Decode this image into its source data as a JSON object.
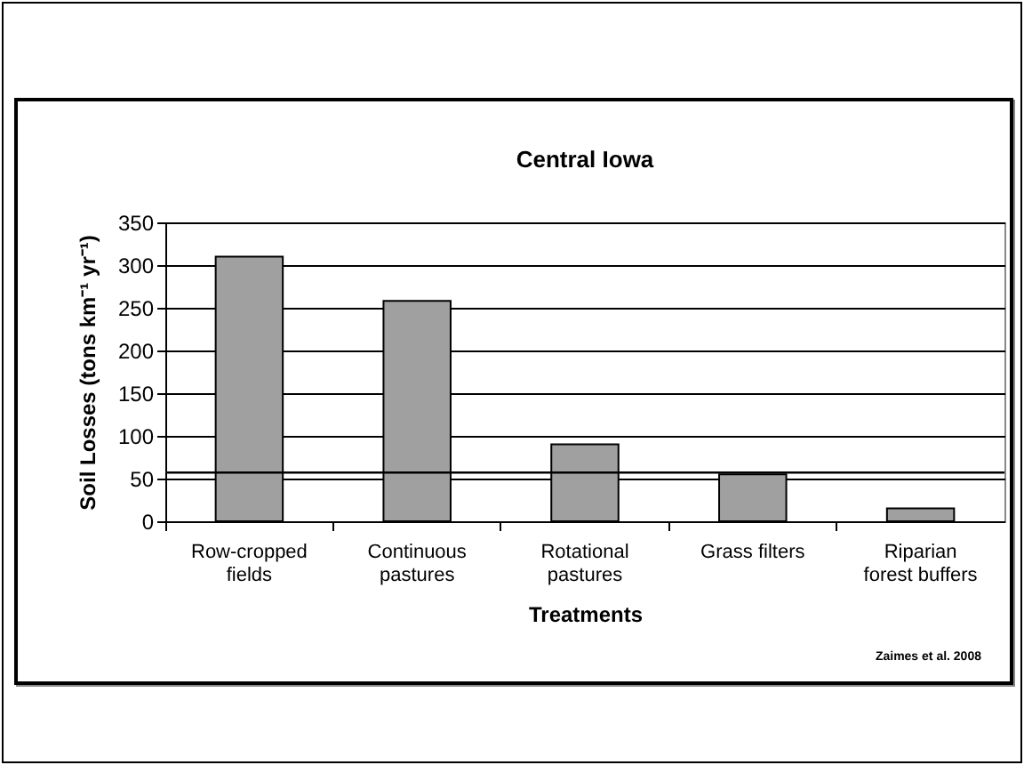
{
  "chart_data": {
    "type": "bar",
    "title": "Central Iowa",
    "xlabel": "Treatments",
    "ylabel": "Soil Losses (tons km⁻¹ yr⁻¹)",
    "categories": [
      "Row-cropped fields",
      "Continuous pastures",
      "Rotational pastures",
      "Grass filters",
      "Riparian forest buffers"
    ],
    "values": [
      310,
      258,
      90,
      55,
      15
    ],
    "color": "#a0a0a0",
    "ylim": [
      0,
      350
    ],
    "yticks": [
      0,
      50,
      100,
      150,
      200,
      250,
      300,
      350
    ],
    "grid": "y",
    "ref_lines": [
      {
        "axis": "y",
        "value": 57,
        "color": "#000000"
      }
    ],
    "annotations": [
      "Zaimes et al. 2008"
    ]
  }
}
